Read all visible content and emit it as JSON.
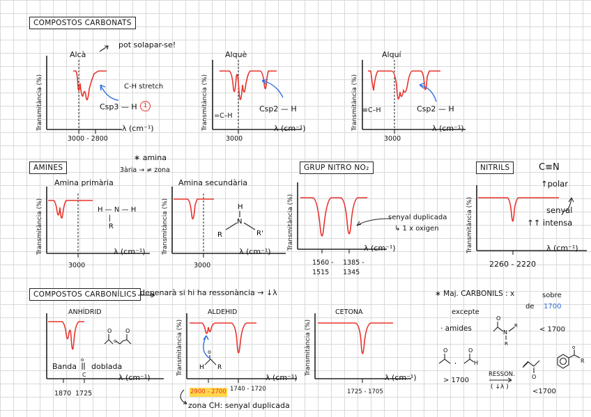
{
  "headers": {
    "carbonats": "COMPOSTOS CARBONATS",
    "amines": "AMINES",
    "nitro": "GRUP NITRO  NO₂",
    "nitrils": "NITRILS",
    "carbonilics": "COMPOSTOS CARBONÍLICS"
  },
  "axis": {
    "y": "Transmitància (%)",
    "x": "λ (cm⁻¹)"
  },
  "alca": {
    "title": "Alcà",
    "note": "pot solapar-se!",
    "stretch": "C-H stretch",
    "bond": "Csp3 — H",
    "circle": "1",
    "tick": "3000 - 2800"
  },
  "alque": {
    "title": "Alquè",
    "bond_left": "=C–H",
    "bond_right": "Csp2 — H",
    "tick": "3000"
  },
  "alqui": {
    "title": "Alquí",
    "bond_left": "≡C–H",
    "bond_right": "Csp2 — H",
    "tick": "3000"
  },
  "amines": {
    "note_star": "∗ amina",
    "note_line": "3ària → ≠ zona",
    "primary": "Amina primària",
    "secondary": "Amina secundària",
    "tick1": "3000",
    "tick2": "3000"
  },
  "nitro": {
    "signal1": "senyal duplicada",
    "signal2": "↳ 1 x oxigen",
    "tick1": "1560 -",
    "tick1b": "1515",
    "tick2": "1385 -",
    "tick2b": "1345"
  },
  "nitrils": {
    "formula": "C≡N",
    "polar": "↑polar",
    "signal1": "senyal",
    "signal2": "↑↑ intensa",
    "tick": "2260 - 2220"
  },
  "carbonilics": {
    "depends": "depenarà si hi ha ressonància → ↓λ"
  },
  "anhidrid": {
    "title": "ANHÍDRID",
    "banda": "Banda",
    "doblada": "doblada",
    "c": "C",
    "tick1": "1870",
    "tick2": "1725"
  },
  "aldehid": {
    "title": "ALDEHID",
    "tick_hl": "2900 - 2700",
    "tick2": "1740 - 1720",
    "zona": "zona CH: senyal duplicada"
  },
  "cetona": {
    "title": "CETONA",
    "tick": "1725 - 1705"
  },
  "majcarb": {
    "line1": "∗ Maj. CARBONILS : x",
    "sobre": "sobre",
    "de": "de",
    "val": "1700",
    "excepte": "excepte",
    "amides": "· amides",
    "lt1700": "< 1700",
    "gt1700": "> 1700",
    "resson": "RESSON.",
    "resson2": "( ↓λ )",
    "lt1700b": "<1700",
    "R": "R"
  }
}
